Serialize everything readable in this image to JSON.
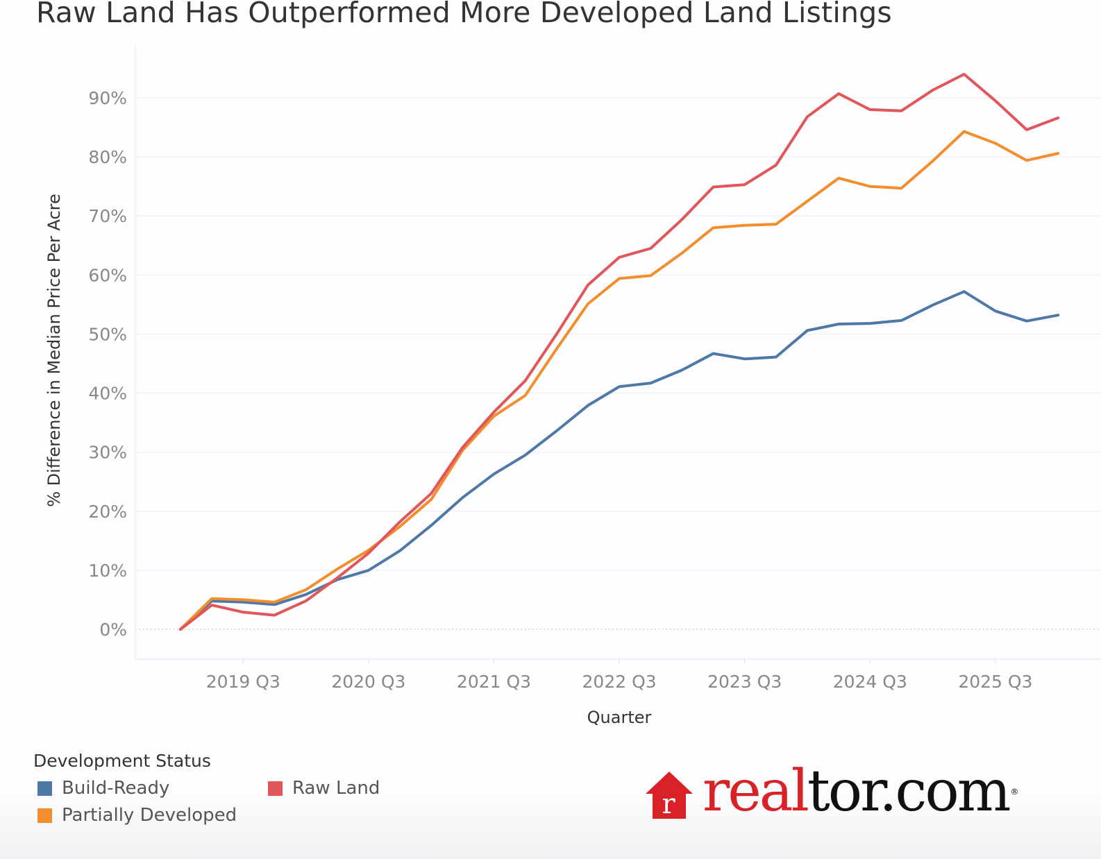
{
  "chart_data": {
    "type": "line",
    "title": "Raw Land Has Outperformed More Developed Land Listings",
    "xlabel": "Quarter",
    "ylabel": "% Difference in Median Price Per Acre",
    "ylim": [
      0,
      95
    ],
    "y_ticks": [
      0,
      10,
      20,
      30,
      40,
      50,
      60,
      70,
      80,
      90
    ],
    "y_tick_labels": [
      "0%",
      "10%",
      "20%",
      "30%",
      "40%",
      "50%",
      "60%",
      "70%",
      "80%",
      "90%"
    ],
    "x_tick_labels": [
      "2019 Q3",
      "2020 Q3",
      "2021 Q3",
      "2022 Q3",
      "2023 Q3",
      "2024 Q3",
      "2025 Q3"
    ],
    "x": [
      "2019 Q1",
      "2019 Q2",
      "2019 Q3",
      "2019 Q4",
      "2020 Q1",
      "2020 Q2",
      "2020 Q3",
      "2020 Q4",
      "2021 Q1",
      "2021 Q2",
      "2021 Q3",
      "2021 Q4",
      "2022 Q1",
      "2022 Q2",
      "2022 Q3",
      "2022 Q4",
      "2023 Q1",
      "2023 Q2",
      "2023 Q3",
      "2023 Q4",
      "2024 Q1",
      "2024 Q2",
      "2024 Q3",
      "2024 Q4",
      "2025 Q1",
      "2025 Q2",
      "2025 Q3",
      "2025 Q4",
      "2026 Q1"
    ],
    "grid": true,
    "zero_line": "dotted",
    "legend_title": "Development Status",
    "legend_position": "bottom-left",
    "series": [
      {
        "name": "Build-Ready",
        "color": "#4e79a7",
        "values": [
          0,
          4.8,
          4.6,
          4.2,
          5.9,
          8.4,
          10.0,
          13.3,
          17.6,
          22.3,
          26.3,
          29.5,
          33.6,
          37.9,
          41.1,
          41.7,
          43.9,
          46.7,
          45.8,
          46.1,
          50.6,
          51.7,
          51.8,
          52.3,
          54.9,
          57.2,
          53.9,
          52.2,
          53.2
        ]
      },
      {
        "name": "Partially Developed",
        "color": "#f28e2b",
        "values": [
          0,
          5.2,
          5.0,
          4.6,
          6.7,
          10.2,
          13.4,
          17.4,
          22.0,
          30.3,
          36.1,
          39.6,
          47.5,
          55.1,
          59.4,
          59.9,
          63.7,
          68.0,
          68.4,
          68.6,
          72.5,
          76.4,
          75.0,
          74.7,
          79.3,
          84.3,
          82.3,
          79.4,
          80.6
        ]
      },
      {
        "name": "Raw Land",
        "color": "#e15759",
        "values": [
          0,
          4.1,
          2.9,
          2.4,
          4.8,
          8.7,
          12.9,
          18.2,
          23.0,
          30.8,
          36.8,
          42.1,
          50.0,
          58.3,
          63.0,
          64.5,
          69.4,
          74.9,
          75.3,
          78.6,
          86.8,
          90.7,
          88.0,
          87.8,
          91.3,
          94.0,
          89.5,
          84.6,
          86.6
        ]
      }
    ]
  },
  "legend": {
    "title": "Development Status",
    "items": [
      {
        "label": "Build-Ready",
        "color": "#4e79a7"
      },
      {
        "label": "Raw Land",
        "color": "#e15759"
      },
      {
        "label": "Partially Developed",
        "color": "#f28e2b"
      }
    ]
  },
  "logo": {
    "red_text": "real",
    "black_text": "tor.com",
    "registered": "®",
    "house_letter": "r",
    "brand_red": "#d92228"
  }
}
